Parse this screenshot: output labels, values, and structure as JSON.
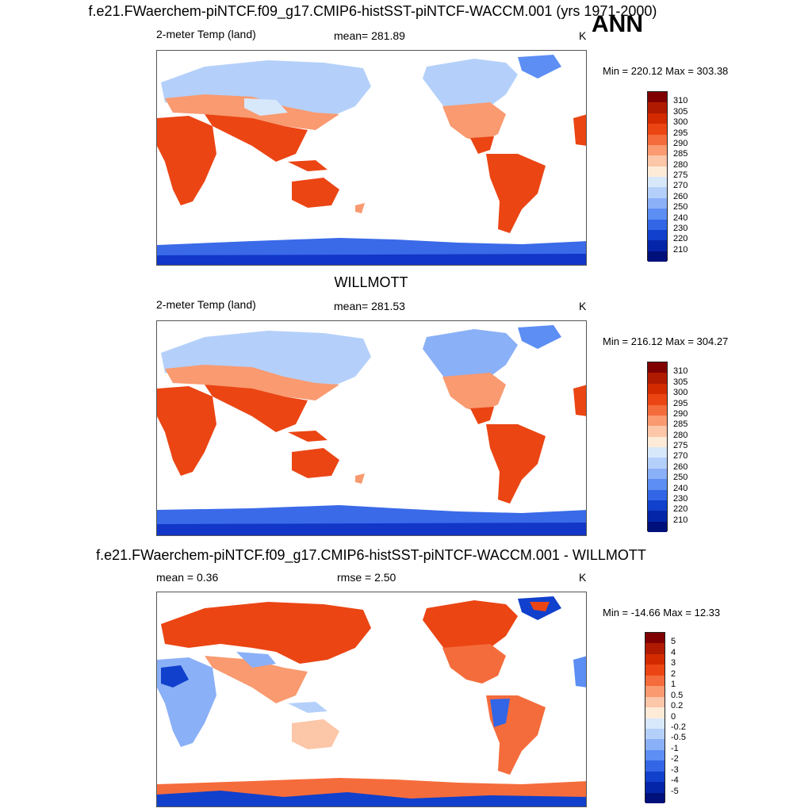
{
  "header": {
    "title": "f.e21.FWaerchem-piNTCF.f09_g17.CMIP6-histSST-piNTCF-WACCM.001 (yrs 1971-2000)",
    "season": "ANN"
  },
  "panel1": {
    "left_label": "2-meter Temp (land)",
    "mean_label": "mean= 281.89",
    "units": "K",
    "minmax": "Min = 220.12 Max = 303.38",
    "colorbar": {
      "labels": [
        "310",
        "305",
        "300",
        "295",
        "290",
        "285",
        "280",
        "275",
        "270",
        "260",
        "250",
        "240",
        "230",
        "220",
        "210"
      ],
      "colors": [
        "#800000",
        "#b01a00",
        "#d32a00",
        "#eb4514",
        "#f56c3c",
        "#f99a70",
        "#fcc6a8",
        "#fdebd8",
        "#d8e8fb",
        "#b4d0fa",
        "#8ab0f7",
        "#5c8ef4",
        "#3366e6",
        "#1040cc",
        "#0525a8",
        "#00107a"
      ]
    }
  },
  "panel2": {
    "center_title": "WILLMOTT",
    "left_label": "2-meter Temp (land)",
    "mean_label": "mean= 281.53",
    "units": "K",
    "minmax": "Min = 216.12 Max = 304.27",
    "colorbar": {
      "labels": [
        "310",
        "305",
        "300",
        "295",
        "290",
        "285",
        "280",
        "275",
        "270",
        "260",
        "250",
        "240",
        "230",
        "220",
        "210"
      ],
      "colors": [
        "#800000",
        "#b01a00",
        "#d32a00",
        "#eb4514",
        "#f56c3c",
        "#f99a70",
        "#fcc6a8",
        "#fdebd8",
        "#d8e8fb",
        "#b4d0fa",
        "#8ab0f7",
        "#5c8ef4",
        "#3366e6",
        "#1040cc",
        "#0525a8",
        "#00107a"
      ]
    }
  },
  "panel3": {
    "center_title": "f.e21.FWaerchem-piNTCF.f09_g17.CMIP6-histSST-piNTCF-WACCM.001 - WILLMOTT",
    "mean_label": "mean =   0.36",
    "rmse_label": "rmse =   2.50",
    "units": "K",
    "minmax": "Min = -14.66 Max =  12.33",
    "colorbar": {
      "labels": [
        "5",
        "4",
        "3",
        "2",
        "1",
        "0.5",
        "0.2",
        "0",
        "-0.2",
        "-0.5",
        "-1",
        "-2",
        "-3",
        "-4",
        "-5"
      ],
      "colors": [
        "#800000",
        "#b01a00",
        "#d32a00",
        "#eb4514",
        "#f56c3c",
        "#f99a70",
        "#fcc6a8",
        "#fdebd8",
        "#d8e8fb",
        "#b4d0fa",
        "#8ab0f7",
        "#5c8ef4",
        "#3366e6",
        "#1040cc",
        "#0525a8",
        "#00107a"
      ]
    }
  }
}
